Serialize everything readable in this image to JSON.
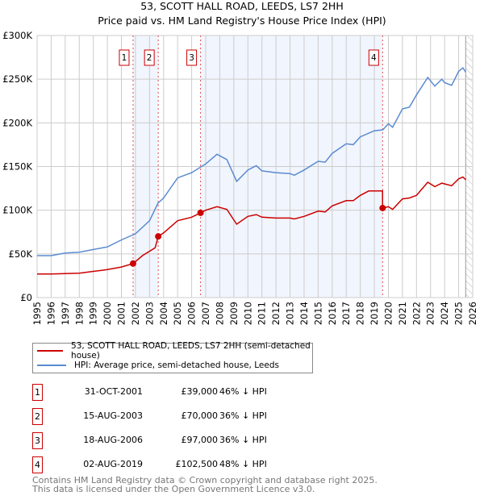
{
  "title": "53, SCOTT HALL ROAD, LEEDS, LS7 2HH",
  "subtitle": "Price paid vs. HM Land Registry's House Price Index (HPI)",
  "chart_data": {
    "type": "line",
    "title": "53, SCOTT HALL ROAD, LEEDS, LS7 2HH",
    "subtitle": "Price paid vs. HM Land Registry's House Price Index (HPI)",
    "xlim": [
      1995,
      2026
    ],
    "ylim": [
      0,
      300000
    ],
    "x_ticks": [
      "1995",
      "1996",
      "1997",
      "1998",
      "1999",
      "2000",
      "2001",
      "2002",
      "2003",
      "2004",
      "2005",
      "2006",
      "2007",
      "2008",
      "2009",
      "2010",
      "2011",
      "2012",
      "2013",
      "2014",
      "2015",
      "2016",
      "2017",
      "2018",
      "2019",
      "2020",
      "2021",
      "2022",
      "2023",
      "2024",
      "2025",
      "2026"
    ],
    "y_ticks": [
      {
        "v": 0,
        "label": "£0"
      },
      {
        "v": 50000,
        "label": "£50K"
      },
      {
        "v": 100000,
        "label": "£100K"
      },
      {
        "v": 150000,
        "label": "£150K"
      },
      {
        "v": 200000,
        "label": "£200K"
      },
      {
        "v": 250000,
        "label": "£250K"
      },
      {
        "v": 300000,
        "label": "£300K"
      }
    ],
    "grid": true,
    "legend_placement": "below",
    "forecast_hatch_from": 2025.5,
    "series": [
      {
        "name": "53, SCOTT HALL ROAD, LEEDS, LS7 2HH (semi-detached house)",
        "color": "#cc0000",
        "points": [
          [
            1995,
            27000
          ],
          [
            1996,
            27000
          ],
          [
            1997,
            27500
          ],
          [
            1998,
            28000
          ],
          [
            1999,
            30000
          ],
          [
            2000,
            32000
          ],
          [
            2001,
            35000
          ],
          [
            2001.83,
            39000
          ],
          [
            2002.5,
            48000
          ],
          [
            2003.4,
            57000
          ],
          [
            2003.62,
            70000
          ],
          [
            2004,
            74000
          ],
          [
            2005,
            88000
          ],
          [
            2006,
            92000
          ],
          [
            2006.63,
            97000
          ],
          [
            2007,
            100000
          ],
          [
            2007.8,
            104000
          ],
          [
            2008.5,
            101000
          ],
          [
            2009.2,
            84000
          ],
          [
            2010,
            93000
          ],
          [
            2010.6,
            95000
          ],
          [
            2011,
            92000
          ],
          [
            2012,
            91000
          ],
          [
            2013,
            91000
          ],
          [
            2013.3,
            90000
          ],
          [
            2014,
            93000
          ],
          [
            2015,
            99000
          ],
          [
            2015.5,
            98000
          ],
          [
            2016,
            105000
          ],
          [
            2017,
            111000
          ],
          [
            2017.5,
            111000
          ],
          [
            2018,
            117000
          ],
          [
            2018.6,
            122000
          ],
          [
            2019.58,
            122000
          ],
          [
            2019.59,
            102500
          ],
          [
            2020,
            104000
          ],
          [
            2020.3,
            101000
          ],
          [
            2021,
            113000
          ],
          [
            2021.5,
            114000
          ],
          [
            2022,
            117000
          ],
          [
            2022.8,
            132000
          ],
          [
            2023.3,
            127000
          ],
          [
            2023.8,
            131000
          ],
          [
            2024.5,
            128000
          ],
          [
            2025,
            136000
          ],
          [
            2025.3,
            138000
          ],
          [
            2025.5,
            135000
          ]
        ]
      },
      {
        "name": "HPI: Average price, semi-detached house, Leeds",
        "color": "#5b8bd0",
        "points": [
          [
            1995,
            48000
          ],
          [
            1996,
            48000
          ],
          [
            1997,
            51000
          ],
          [
            1998,
            52000
          ],
          [
            1999,
            55000
          ],
          [
            2000,
            58000
          ],
          [
            2001,
            66000
          ],
          [
            2002,
            73000
          ],
          [
            2003,
            88000
          ],
          [
            2003.6,
            108000
          ],
          [
            2004,
            114000
          ],
          [
            2005,
            137000
          ],
          [
            2006,
            143000
          ],
          [
            2007,
            153000
          ],
          [
            2007.8,
            164000
          ],
          [
            2008.5,
            158000
          ],
          [
            2009.2,
            133000
          ],
          [
            2010,
            146000
          ],
          [
            2010.6,
            151000
          ],
          [
            2011,
            145000
          ],
          [
            2012,
            143000
          ],
          [
            2013,
            142000
          ],
          [
            2013.3,
            140000
          ],
          [
            2014,
            146000
          ],
          [
            2015,
            156000
          ],
          [
            2015.5,
            155000
          ],
          [
            2016,
            165000
          ],
          [
            2017,
            176000
          ],
          [
            2017.5,
            175000
          ],
          [
            2018,
            184000
          ],
          [
            2019,
            191000
          ],
          [
            2019.6,
            192000
          ],
          [
            2020,
            199000
          ],
          [
            2020.3,
            195000
          ],
          [
            2021,
            216000
          ],
          [
            2021.5,
            218000
          ],
          [
            2022,
            232000
          ],
          [
            2022.8,
            252000
          ],
          [
            2023.3,
            242000
          ],
          [
            2023.8,
            250000
          ],
          [
            2024,
            246000
          ],
          [
            2024.5,
            243000
          ],
          [
            2025,
            259000
          ],
          [
            2025.3,
            263000
          ],
          [
            2025.5,
            258000
          ]
        ]
      }
    ],
    "sales": [
      {
        "label": "1",
        "x": 2001.83,
        "price": 39000
      },
      {
        "label": "2",
        "x": 2003.62,
        "price": 70000
      },
      {
        "label": "3",
        "x": 2006.63,
        "price": 97000
      },
      {
        "label": "4",
        "x": 2019.59,
        "price": 102500
      }
    ],
    "shaded_ranges": [
      [
        2001.83,
        2003.62
      ],
      [
        2006.63,
        2019.59
      ]
    ]
  },
  "legend": [
    {
      "label": "53, SCOTT HALL ROAD, LEEDS, LS7 2HH (semi-detached house)",
      "color": "#cc0000"
    },
    {
      "label": "HPI: Average price, semi-detached house, Leeds",
      "color": "#5b8bd0"
    }
  ],
  "transactions": [
    {
      "num": "1",
      "date": "31-OCT-2001",
      "price": "£39,000",
      "diff": "46% ↓ HPI"
    },
    {
      "num": "2",
      "date": "15-AUG-2003",
      "price": "£70,000",
      "diff": "36% ↓ HPI"
    },
    {
      "num": "3",
      "date": "18-AUG-2006",
      "price": "£97,000",
      "diff": "36% ↓ HPI"
    },
    {
      "num": "4",
      "date": "02-AUG-2019",
      "price": "£102,500",
      "diff": "48% ↓ HPI"
    }
  ],
  "footer": {
    "line1": "Contains HM Land Registry data © Crown copyright and database right 2025.",
    "line2": "This data is licensed under the Open Government Licence v3.0."
  }
}
